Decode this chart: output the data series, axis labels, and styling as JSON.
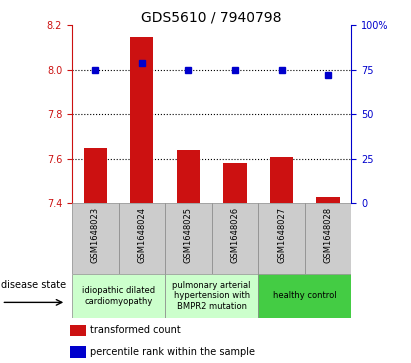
{
  "title": "GDS5610 / 7940798",
  "samples": [
    "GSM1648023",
    "GSM1648024",
    "GSM1648025",
    "GSM1648026",
    "GSM1648027",
    "GSM1648028"
  ],
  "bar_values": [
    7.65,
    8.15,
    7.64,
    7.58,
    7.61,
    7.43
  ],
  "bar_bottom": 7.4,
  "percentile_values": [
    75.0,
    79.0,
    75.0,
    75.0,
    75.0,
    72.0
  ],
  "ylim_left": [
    7.4,
    8.2
  ],
  "ylim_right": [
    0,
    100
  ],
  "right_ticks": [
    0,
    25,
    50,
    75,
    100
  ],
  "right_tick_labels": [
    "0",
    "25",
    "50",
    "75",
    "100%"
  ],
  "left_ticks": [
    7.4,
    7.6,
    7.8,
    8.0,
    8.2
  ],
  "hlines_pct": [
    75,
    50,
    25
  ],
  "bar_color": "#cc1111",
  "dot_color": "#0000cc",
  "group_colors": [
    "#ccffcc",
    "#ccffcc",
    "#44cc44"
  ],
  "group_texts": [
    "idiopathic dilated\ncardiomyopathy",
    "pulmonary arterial\nhypertension with\nBMPR2 mutation",
    "healthy control"
  ],
  "group_ranges": [
    [
      0,
      2
    ],
    [
      2,
      4
    ],
    [
      4,
      6
    ]
  ],
  "legend_bar_label": "transformed count",
  "legend_dot_label": "percentile rank within the sample",
  "disease_state_label": "disease state",
  "left_axis_color": "#cc1111",
  "right_axis_color": "#0000cc",
  "bg_color": "#ffffff",
  "sample_box_color": "#cccccc",
  "title_fontsize": 10,
  "tick_fontsize": 7,
  "legend_fontsize": 7,
  "sample_fontsize": 6,
  "disease_fontsize": 6
}
